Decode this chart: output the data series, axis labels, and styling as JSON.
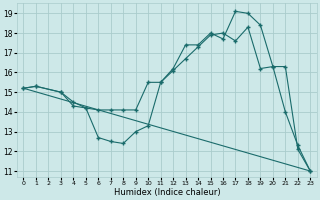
{
  "xlabel": "Humidex (Indice chaleur)",
  "ylabel": "",
  "xlim": [
    -0.5,
    23.5
  ],
  "ylim": [
    10.7,
    19.5
  ],
  "yticks": [
    11,
    12,
    13,
    14,
    15,
    16,
    17,
    18,
    19
  ],
  "xticks": [
    0,
    1,
    2,
    3,
    4,
    5,
    6,
    7,
    8,
    9,
    10,
    11,
    12,
    13,
    14,
    15,
    16,
    17,
    18,
    19,
    20,
    21,
    22,
    23
  ],
  "bg_color": "#cde8e8",
  "grid_color": "#aacccc",
  "line_color": "#1a6b6b",
  "lines": [
    {
      "x": [
        0,
        1,
        3,
        4,
        5,
        6,
        7,
        8,
        9,
        10,
        11,
        12,
        13,
        14,
        15,
        16,
        17,
        18,
        19,
        20,
        21,
        22,
        23
      ],
      "y": [
        15.2,
        15.3,
        15.0,
        14.5,
        14.2,
        12.7,
        12.5,
        12.4,
        13.0,
        13.3,
        15.5,
        16.2,
        17.4,
        17.4,
        18.0,
        17.7,
        19.1,
        19.0,
        18.4,
        16.3,
        14.0,
        12.3,
        11.0
      ],
      "has_markers": true
    },
    {
      "x": [
        0,
        1,
        3,
        4,
        5,
        6,
        7,
        8,
        9,
        10,
        11,
        12,
        13,
        14,
        15,
        16,
        17,
        18,
        19,
        20,
        21,
        22,
        23
      ],
      "y": [
        15.2,
        15.3,
        15.0,
        14.3,
        14.2,
        14.1,
        14.1,
        14.1,
        14.1,
        15.5,
        15.5,
        16.1,
        16.7,
        17.3,
        17.9,
        18.0,
        17.6,
        18.3,
        16.2,
        16.3,
        16.3,
        12.1,
        11.0
      ],
      "has_markers": true
    },
    {
      "x": [
        0,
        23
      ],
      "y": [
        15.2,
        11.0
      ],
      "has_markers": false
    }
  ]
}
